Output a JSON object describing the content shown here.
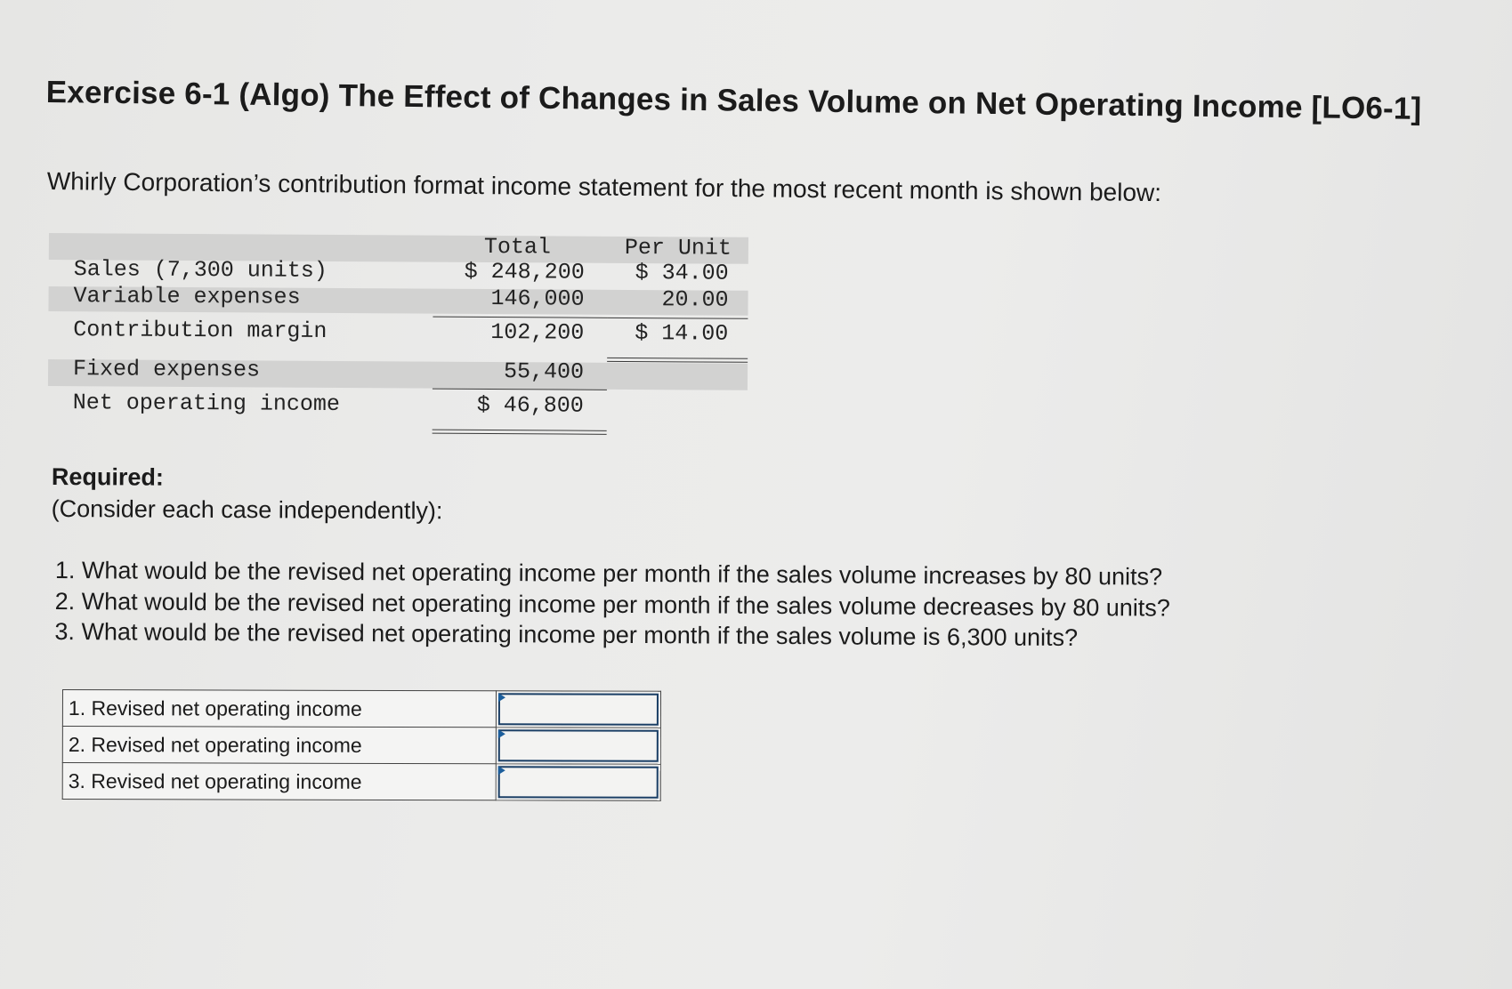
{
  "title": "Exercise 6-1 (Algo) The Effect of Changes in Sales Volume on Net Operating Income [LO6-1]",
  "intro": "Whirly Corporation’s contribution format income statement for the most recent month is shown below:",
  "statement": {
    "col_total": "Total",
    "col_per_unit": "Per Unit",
    "rows": [
      {
        "label": "Sales (7,300 units)",
        "total": "$ 248,200",
        "per_unit": "$ 34.00"
      },
      {
        "label": "Variable expenses",
        "total": "146,000",
        "per_unit": "20.00"
      },
      {
        "label": "Contribution margin",
        "total": "102,200",
        "per_unit": "$ 14.00"
      },
      {
        "label": "Fixed expenses",
        "total": "55,400",
        "per_unit": ""
      },
      {
        "label": "Net operating income",
        "total": "$ 46,800",
        "per_unit": ""
      }
    ]
  },
  "required": {
    "heading": "Required:",
    "subheading": "(Consider each case independently):"
  },
  "questions": [
    "1. What would be the revised net operating income per month if the sales volume increases by 80 units?",
    "2. What would be the revised net operating income per month if the sales volume decreases by 80 units?",
    "3. What would be the revised net operating income per month if the sales volume is 6,300 units?"
  ],
  "answers": [
    {
      "label": "1. Revised net operating income",
      "value": ""
    },
    {
      "label": "2. Revised net operating income",
      "value": ""
    },
    {
      "label": "3. Revised net operating income",
      "value": ""
    }
  ]
}
